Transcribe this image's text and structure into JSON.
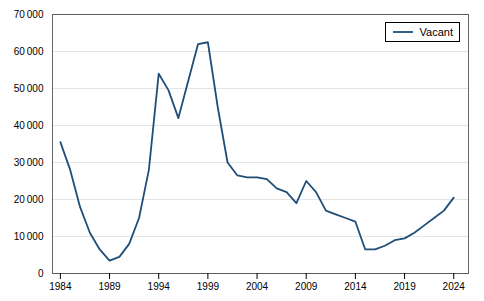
{
  "chart_data": {
    "type": "line",
    "x": [
      1984,
      1985,
      1986,
      1987,
      1988,
      1989,
      1990,
      1991,
      1992,
      1993,
      1994,
      1995,
      1996,
      1997,
      1998,
      1999,
      2000,
      2001,
      2002,
      2003,
      2004,
      2005,
      2006,
      2007,
      2008,
      2009,
      2010,
      2011,
      2012,
      2013,
      2014,
      2015,
      2016,
      2017,
      2018,
      2019,
      2020,
      2021,
      2022,
      2023,
      2024
    ],
    "series": [
      {
        "name": "Vacant",
        "color": "#1F4E79",
        "values": [
          35500,
          28000,
          18000,
          11000,
          6500,
          3500,
          4500,
          8000,
          15000,
          28000,
          54000,
          49500,
          42000,
          52000,
          62000,
          62500,
          45000,
          30000,
          26500,
          26000,
          26000,
          25500,
          23000,
          22000,
          19000,
          25000,
          22000,
          17000,
          16000,
          15000,
          14000,
          6500,
          6500,
          7500,
          9000,
          9500,
          11000,
          13000,
          15000,
          17000,
          20500
        ]
      }
    ],
    "xlim": [
      1983.2,
      2025.5
    ],
    "xticks": [
      1984,
      1989,
      1994,
      1999,
      2004,
      2009,
      2014,
      2019,
      2024
    ],
    "ylim": [
      0,
      70000
    ],
    "yticks": [
      0,
      {
        "value": 10000,
        "label": "10 000"
      },
      {
        "value": 20000,
        "label": "20 000"
      },
      {
        "value": 30000,
        "label": "30 000"
      },
      {
        "value": 40000,
        "label": "40 000"
      },
      {
        "value": 50000,
        "label": "50 000"
      },
      {
        "value": 60000,
        "label": "60 000"
      },
      {
        "value": 70000,
        "label": "70 000"
      }
    ],
    "grid": true,
    "legend": "upper right"
  }
}
